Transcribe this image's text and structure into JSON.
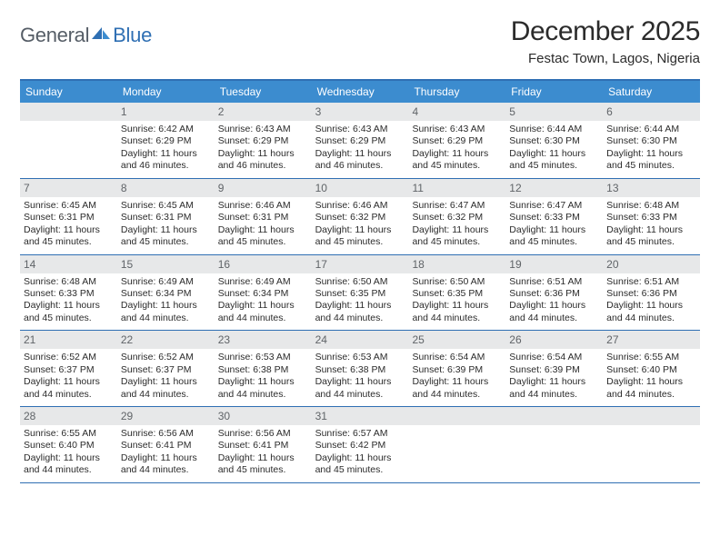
{
  "logo": {
    "text_gray": "General",
    "text_blue": "Blue"
  },
  "header": {
    "month_title": "December 2025",
    "location": "Festac Town, Lagos, Nigeria"
  },
  "colors": {
    "accent": "#3c8ccf",
    "rule": "#2f6fb3",
    "daynum_bg": "#e7e8e9",
    "daynum_fg": "#606468",
    "text": "#2b2b2b",
    "logo_gray": "#555d66"
  },
  "day_names": [
    "Sunday",
    "Monday",
    "Tuesday",
    "Wednesday",
    "Thursday",
    "Friday",
    "Saturday"
  ],
  "weeks": [
    [
      {
        "n": "",
        "sunrise": "",
        "sunset": "",
        "daylight": ""
      },
      {
        "n": "1",
        "sunrise": "6:42 AM",
        "sunset": "6:29 PM",
        "daylight": "11 hours and 46 minutes."
      },
      {
        "n": "2",
        "sunrise": "6:43 AM",
        "sunset": "6:29 PM",
        "daylight": "11 hours and 46 minutes."
      },
      {
        "n": "3",
        "sunrise": "6:43 AM",
        "sunset": "6:29 PM",
        "daylight": "11 hours and 46 minutes."
      },
      {
        "n": "4",
        "sunrise": "6:43 AM",
        "sunset": "6:29 PM",
        "daylight": "11 hours and 45 minutes."
      },
      {
        "n": "5",
        "sunrise": "6:44 AM",
        "sunset": "6:30 PM",
        "daylight": "11 hours and 45 minutes."
      },
      {
        "n": "6",
        "sunrise": "6:44 AM",
        "sunset": "6:30 PM",
        "daylight": "11 hours and 45 minutes."
      }
    ],
    [
      {
        "n": "7",
        "sunrise": "6:45 AM",
        "sunset": "6:31 PM",
        "daylight": "11 hours and 45 minutes."
      },
      {
        "n": "8",
        "sunrise": "6:45 AM",
        "sunset": "6:31 PM",
        "daylight": "11 hours and 45 minutes."
      },
      {
        "n": "9",
        "sunrise": "6:46 AM",
        "sunset": "6:31 PM",
        "daylight": "11 hours and 45 minutes."
      },
      {
        "n": "10",
        "sunrise": "6:46 AM",
        "sunset": "6:32 PM",
        "daylight": "11 hours and 45 minutes."
      },
      {
        "n": "11",
        "sunrise": "6:47 AM",
        "sunset": "6:32 PM",
        "daylight": "11 hours and 45 minutes."
      },
      {
        "n": "12",
        "sunrise": "6:47 AM",
        "sunset": "6:33 PM",
        "daylight": "11 hours and 45 minutes."
      },
      {
        "n": "13",
        "sunrise": "6:48 AM",
        "sunset": "6:33 PM",
        "daylight": "11 hours and 45 minutes."
      }
    ],
    [
      {
        "n": "14",
        "sunrise": "6:48 AM",
        "sunset": "6:33 PM",
        "daylight": "11 hours and 45 minutes."
      },
      {
        "n": "15",
        "sunrise": "6:49 AM",
        "sunset": "6:34 PM",
        "daylight": "11 hours and 44 minutes."
      },
      {
        "n": "16",
        "sunrise": "6:49 AM",
        "sunset": "6:34 PM",
        "daylight": "11 hours and 44 minutes."
      },
      {
        "n": "17",
        "sunrise": "6:50 AM",
        "sunset": "6:35 PM",
        "daylight": "11 hours and 44 minutes."
      },
      {
        "n": "18",
        "sunrise": "6:50 AM",
        "sunset": "6:35 PM",
        "daylight": "11 hours and 44 minutes."
      },
      {
        "n": "19",
        "sunrise": "6:51 AM",
        "sunset": "6:36 PM",
        "daylight": "11 hours and 44 minutes."
      },
      {
        "n": "20",
        "sunrise": "6:51 AM",
        "sunset": "6:36 PM",
        "daylight": "11 hours and 44 minutes."
      }
    ],
    [
      {
        "n": "21",
        "sunrise": "6:52 AM",
        "sunset": "6:37 PM",
        "daylight": "11 hours and 44 minutes."
      },
      {
        "n": "22",
        "sunrise": "6:52 AM",
        "sunset": "6:37 PM",
        "daylight": "11 hours and 44 minutes."
      },
      {
        "n": "23",
        "sunrise": "6:53 AM",
        "sunset": "6:38 PM",
        "daylight": "11 hours and 44 minutes."
      },
      {
        "n": "24",
        "sunrise": "6:53 AM",
        "sunset": "6:38 PM",
        "daylight": "11 hours and 44 minutes."
      },
      {
        "n": "25",
        "sunrise": "6:54 AM",
        "sunset": "6:39 PM",
        "daylight": "11 hours and 44 minutes."
      },
      {
        "n": "26",
        "sunrise": "6:54 AM",
        "sunset": "6:39 PM",
        "daylight": "11 hours and 44 minutes."
      },
      {
        "n": "27",
        "sunrise": "6:55 AM",
        "sunset": "6:40 PM",
        "daylight": "11 hours and 44 minutes."
      }
    ],
    [
      {
        "n": "28",
        "sunrise": "6:55 AM",
        "sunset": "6:40 PM",
        "daylight": "11 hours and 44 minutes."
      },
      {
        "n": "29",
        "sunrise": "6:56 AM",
        "sunset": "6:41 PM",
        "daylight": "11 hours and 44 minutes."
      },
      {
        "n": "30",
        "sunrise": "6:56 AM",
        "sunset": "6:41 PM",
        "daylight": "11 hours and 45 minutes."
      },
      {
        "n": "31",
        "sunrise": "6:57 AM",
        "sunset": "6:42 PM",
        "daylight": "11 hours and 45 minutes."
      },
      {
        "n": "",
        "sunrise": "",
        "sunset": "",
        "daylight": ""
      },
      {
        "n": "",
        "sunrise": "",
        "sunset": "",
        "daylight": ""
      },
      {
        "n": "",
        "sunrise": "",
        "sunset": "",
        "daylight": ""
      }
    ]
  ],
  "labels": {
    "sunrise": "Sunrise:",
    "sunset": "Sunset:",
    "daylight": "Daylight:"
  }
}
